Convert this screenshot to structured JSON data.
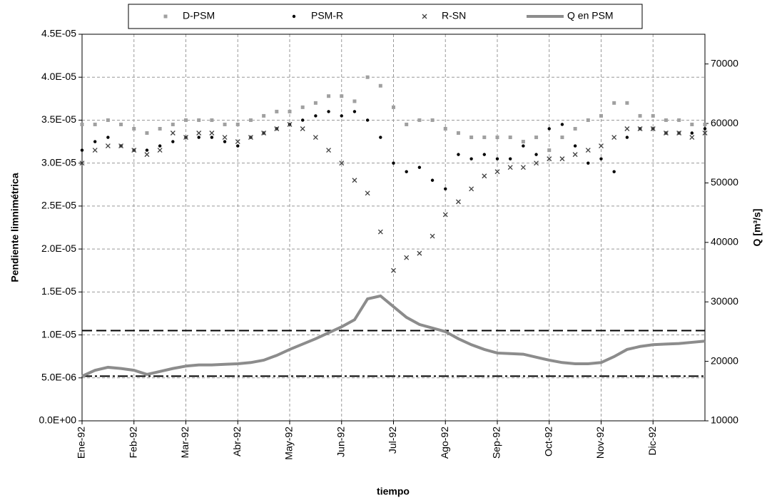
{
  "chart_data": {
    "type": "scatter",
    "xlabel": "tiempo",
    "ylabel": "Pendiente limnimétrica",
    "y2label": "Q [m³/s]",
    "x": [
      0,
      0.25,
      0.5,
      0.75,
      1,
      1.25,
      1.5,
      1.75,
      2,
      2.25,
      2.5,
      2.75,
      3,
      3.25,
      3.5,
      3.75,
      4,
      4.25,
      4.5,
      4.75,
      5,
      5.25,
      5.5,
      5.75,
      6,
      6.25,
      6.5,
      6.75,
      7,
      7.25,
      7.5,
      7.75,
      8,
      8.25,
      8.5,
      8.75,
      9,
      9.25,
      9.5,
      9.75,
      10,
      10.25,
      10.5,
      10.75,
      11,
      11.25,
      11.5,
      11.75,
      12
    ],
    "xlim": [
      0,
      12
    ],
    "xticks": [
      {
        "value": 0,
        "label": "Ene-92"
      },
      {
        "value": 1,
        "label": "Feb-92"
      },
      {
        "value": 2,
        "label": "Mar-92"
      },
      {
        "value": 3,
        "label": "Abr-92"
      },
      {
        "value": 4,
        "label": "May-92"
      },
      {
        "value": 5,
        "label": "Jun-92"
      },
      {
        "value": 6,
        "label": "Jul-92"
      },
      {
        "value": 7,
        "label": "Ago-92"
      },
      {
        "value": 8,
        "label": "Sep-92"
      },
      {
        "value": 9,
        "label": "Oct-92"
      },
      {
        "value": 10,
        "label": "Nov-92"
      },
      {
        "value": 11,
        "label": "Dic-92"
      }
    ],
    "ylim": [
      0,
      4.5e-05
    ],
    "yticks": [
      {
        "value": 0,
        "label": "0.0E+00"
      },
      {
        "value": 5e-06,
        "label": "5.0E-06"
      },
      {
        "value": 1e-05,
        "label": "1.0E-05"
      },
      {
        "value": 1.5e-05,
        "label": "1.5E-05"
      },
      {
        "value": 2e-05,
        "label": "2.0E-05"
      },
      {
        "value": 2.5e-05,
        "label": "2.5E-05"
      },
      {
        "value": 3e-05,
        "label": "3.0E-05"
      },
      {
        "value": 3.5e-05,
        "label": "3.5E-05"
      },
      {
        "value": 4e-05,
        "label": "4.0E-05"
      },
      {
        "value": 4.5e-05,
        "label": "4.5E-05"
      }
    ],
    "y2lim": [
      10000,
      75000
    ],
    "y2ticks": [
      10000,
      20000,
      30000,
      40000,
      50000,
      60000,
      70000
    ],
    "grid": true,
    "reference_lines": [
      {
        "value": 1.05e-05,
        "style": "dashed",
        "color": "#000000"
      },
      {
        "value": 5.2e-06,
        "style": "dashdot",
        "color": "#000000"
      }
    ],
    "series": [
      {
        "name": "D-PSM",
        "color": "#a0a0a0",
        "marker": "square",
        "values": [
          3.45e-05,
          3.45e-05,
          3.5e-05,
          3.45e-05,
          3.4e-05,
          3.35e-05,
          3.4e-05,
          3.45e-05,
          3.5e-05,
          3.5e-05,
          3.5e-05,
          3.45e-05,
          3.45e-05,
          3.5e-05,
          3.55e-05,
          3.6e-05,
          3.6e-05,
          3.65e-05,
          3.7e-05,
          3.78e-05,
          3.78e-05,
          3.72e-05,
          4e-05,
          3.9e-05,
          3.65e-05,
          3.45e-05,
          3.5e-05,
          3.5e-05,
          3.4e-05,
          3.35e-05,
          3.3e-05,
          3.3e-05,
          3.3e-05,
          3.3e-05,
          3.25e-05,
          3.3e-05,
          3.15e-05,
          3.3e-05,
          3.4e-05,
          3.5e-05,
          3.55e-05,
          3.7e-05,
          3.7e-05,
          3.55e-05,
          3.55e-05,
          3.5e-05,
          3.5e-05,
          3.45e-05,
          3.45e-05
        ]
      },
      {
        "name": "PSM-R",
        "color": "#000000",
        "marker": "dot",
        "values": [
          3.15e-05,
          3.25e-05,
          3.3e-05,
          3.2e-05,
          3.15e-05,
          3.15e-05,
          3.2e-05,
          3.25e-05,
          3.3e-05,
          3.3e-05,
          3.3e-05,
          3.25e-05,
          3.2e-05,
          3.3e-05,
          3.35e-05,
          3.4e-05,
          3.45e-05,
          3.5e-05,
          3.55e-05,
          3.6e-05,
          3.55e-05,
          3.6e-05,
          3.5e-05,
          3.3e-05,
          3e-05,
          2.9e-05,
          2.95e-05,
          2.8e-05,
          2.7e-05,
          3.1e-05,
          3.05e-05,
          3.1e-05,
          3.05e-05,
          3.05e-05,
          3.2e-05,
          3.1e-05,
          3.4e-05,
          3.45e-05,
          3.2e-05,
          3e-05,
          3.05e-05,
          2.9e-05,
          3.3e-05,
          3.4e-05,
          3.4e-05,
          3.35e-05,
          3.35e-05,
          3.35e-05,
          3.4e-05
        ]
      },
      {
        "name": "R-SN",
        "color": "#404040",
        "marker": "cross",
        "values": [
          3e-05,
          3.15e-05,
          3.2e-05,
          3.2e-05,
          3.15e-05,
          3.1e-05,
          3.15e-05,
          3.35e-05,
          3.3e-05,
          3.35e-05,
          3.35e-05,
          3.3e-05,
          3.25e-05,
          3.3e-05,
          3.35e-05,
          3.4e-05,
          3.45e-05,
          3.4e-05,
          3.3e-05,
          3.15e-05,
          3e-05,
          2.8e-05,
          2.65e-05,
          2.2e-05,
          1.75e-05,
          1.9e-05,
          1.95e-05,
          2.15e-05,
          2.4e-05,
          2.55e-05,
          2.7e-05,
          2.85e-05,
          2.9e-05,
          2.95e-05,
          2.95e-05,
          3e-05,
          3.05e-05,
          3.05e-05,
          3.1e-05,
          3.15e-05,
          3.2e-05,
          3.3e-05,
          3.4e-05,
          3.4e-05,
          3.4e-05,
          3.35e-05,
          3.35e-05,
          3.3e-05,
          3.35e-05
        ]
      },
      {
        "name": "Q en PSM",
        "color": "#8c8c8c",
        "marker": "line",
        "axis": "y2",
        "values": [
          17500,
          18500,
          19000,
          18800,
          18500,
          17800,
          18300,
          18800,
          19200,
          19400,
          19400,
          19500,
          19600,
          19800,
          20200,
          21000,
          22000,
          22900,
          23800,
          24800,
          25800,
          27000,
          30500,
          31000,
          29200,
          27400,
          26200,
          25600,
          25000,
          23800,
          22800,
          22000,
          21400,
          21300,
          21200,
          20700,
          20200,
          19800,
          19600,
          19600,
          19800,
          20800,
          22000,
          22500,
          22800,
          22900,
          23000,
          23200,
          23400
        ]
      }
    ]
  }
}
